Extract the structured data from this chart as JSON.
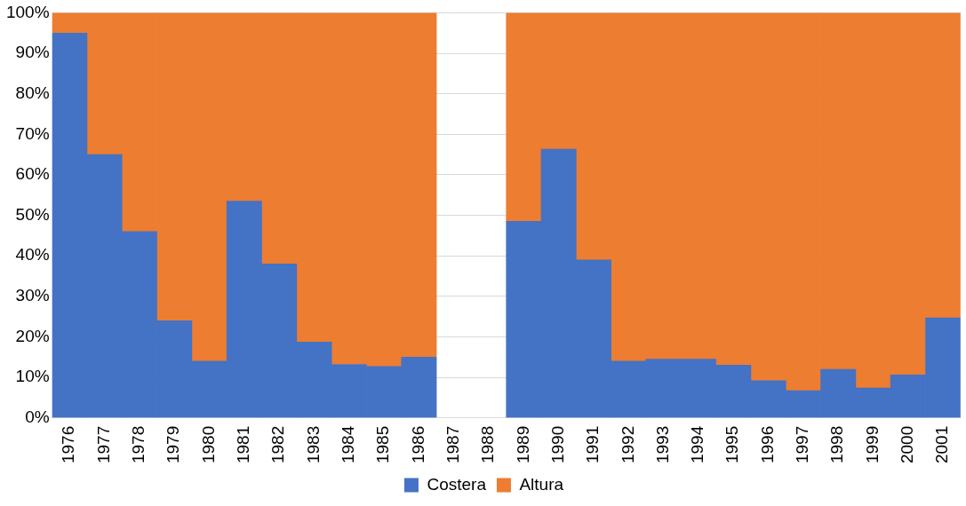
{
  "chart_data": {
    "type": "bar",
    "stacked": true,
    "categories": [
      "1976",
      "1977",
      "1978",
      "1979",
      "1980",
      "1981",
      "1982",
      "1983",
      "1984",
      "1985",
      "1986",
      "1987",
      "1988",
      "1989",
      "1990",
      "1991",
      "1992",
      "1993",
      "1994",
      "1995",
      "1996",
      "1997",
      "1998",
      "1999",
      "2000",
      "2001"
    ],
    "series": [
      {
        "name": "Costera",
        "color": "#4472c4",
        "values": [
          95,
          65,
          46,
          24,
          14,
          53.5,
          38,
          18.7,
          13.2,
          12.7,
          15,
          null,
          null,
          48.5,
          66.3,
          39,
          14,
          14.5,
          14.5,
          13,
          9.2,
          6.7,
          12,
          7.4,
          10.6,
          24.7
        ]
      },
      {
        "name": "Altura",
        "color": "#ed7d31",
        "values": [
          5,
          35,
          54,
          76,
          86,
          46.5,
          62,
          81.3,
          86.8,
          87.3,
          85,
          null,
          null,
          51.5,
          33.7,
          61,
          86,
          85.5,
          85.5,
          87,
          90.8,
          93.3,
          88,
          92.6,
          89.4,
          75.3
        ]
      }
    ],
    "ylim": [
      0,
      100
    ],
    "yticks": [
      {
        "value": 0,
        "label": "0%"
      },
      {
        "value": 10,
        "label": "10%"
      },
      {
        "value": 20,
        "label": "20%"
      },
      {
        "value": 30,
        "label": "30%"
      },
      {
        "value": 40,
        "label": "40%"
      },
      {
        "value": 50,
        "label": "50%"
      },
      {
        "value": 60,
        "label": "60%"
      },
      {
        "value": 70,
        "label": "70%"
      },
      {
        "value": 80,
        "label": "80%"
      },
      {
        "value": 90,
        "label": "90%"
      },
      {
        "value": 100,
        "label": "100%"
      }
    ],
    "grid": "y",
    "legend": "bottom"
  }
}
